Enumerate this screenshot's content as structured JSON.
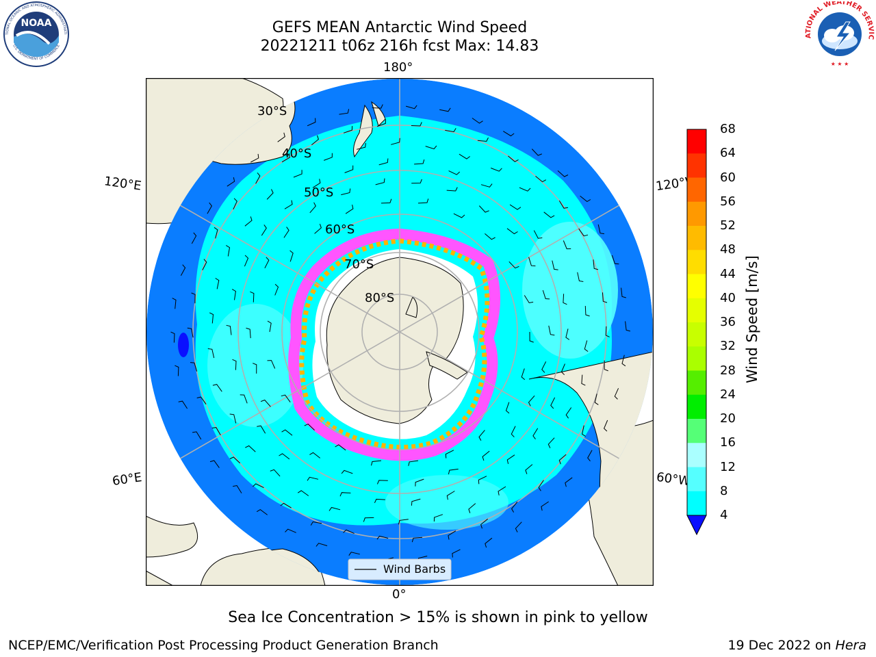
{
  "header": {
    "title_line1": "GEFS MEAN Antarctic Wind Speed",
    "title_line2": "20221211 t06z 216h fcst   Max: 14.83"
  },
  "logos": {
    "noaa_text": "NOAA",
    "noaa_ring": "NATIONAL OCEANIC AND ATMOSPHERIC ADMINISTRATION",
    "noaa_ring_bottom": "U.S. DEPARTMENT OF COMMERCE",
    "nws_ring": "NATIONAL WEATHER SERVICE"
  },
  "map": {
    "projection": "south-polar-stereographic",
    "longitude_labels": [
      "180°",
      "120°E",
      "120°W",
      "60°E",
      "60°W",
      "0°"
    ],
    "latitude_labels": [
      "30°S",
      "40°S",
      "50°S",
      "60°S",
      "70°S",
      "80°S"
    ],
    "legend_label": "Wind Barbs",
    "colors": {
      "ocean_4_8": "#0a7dff",
      "ocean_8_12": "#00ffff",
      "ocean_12_16": "#55ffff",
      "land": "#efeddc",
      "ice_pink": "#ff55ff",
      "ice_orange": "#ffb400"
    }
  },
  "colorbar": {
    "label": "Wind Speed [m/s]",
    "ticks": [
      "68",
      "64",
      "60",
      "56",
      "52",
      "48",
      "44",
      "40",
      "36",
      "32",
      "28",
      "24",
      "20",
      "16",
      "12",
      "8",
      "4"
    ],
    "colors": [
      "#ff0000",
      "#ff3300",
      "#ff6600",
      "#ff9900",
      "#ffbb00",
      "#ffdd00",
      "#ffff00",
      "#e5ff00",
      "#c8ff00",
      "#aaff00",
      "#55ee00",
      "#00ee00",
      "#55ff77",
      "#aaffff",
      "#55ffff",
      "#00ffff",
      "#0a7dff"
    ],
    "extend_color": "#0a10ff"
  },
  "caption": "Sea Ice Concentration > 15% is shown in pink to yellow",
  "footer": {
    "left": "NCEP/EMC/Verification Post Processing Product Generation Branch",
    "right_date": "19 Dec 2022 on ",
    "right_host": "Hera"
  }
}
